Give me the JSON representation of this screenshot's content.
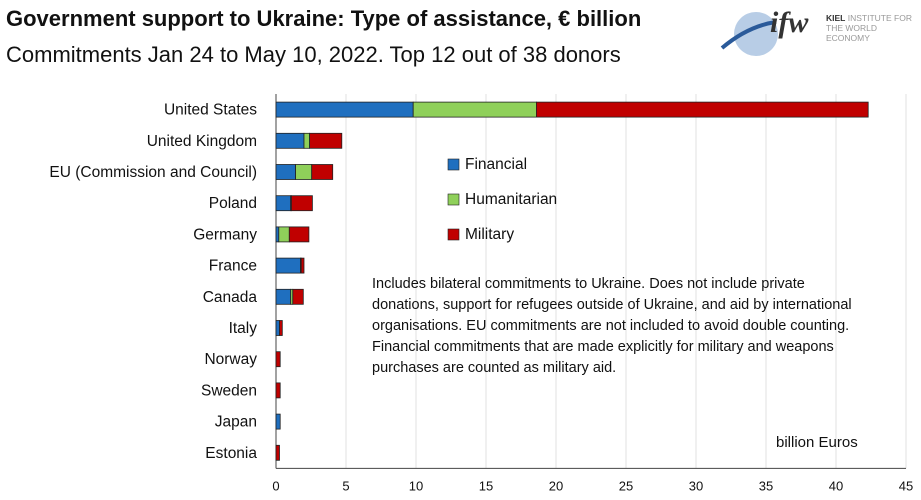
{
  "chart_data": {
    "type": "bar",
    "orientation": "horizontal",
    "stacked": true,
    "title": "Government support to Ukraine: Type of assistance, € billion",
    "subtitle": "Commitments Jan 24 to May 10, 2022. Top 12 out of 38 donors",
    "categories": [
      "United States",
      "United Kingdom",
      "EU (Commission and Council)",
      "Poland",
      "Germany",
      "France",
      "Canada",
      "Italy",
      "Norway",
      "Sweden",
      "Japan",
      "Estonia"
    ],
    "series": [
      {
        "name": "Financial",
        "color": "#1f6fbf",
        "values": [
          9.8,
          2.0,
          1.4,
          1.05,
          0.2,
          1.75,
          1.05,
          0.25,
          0,
          0,
          0.3,
          0
        ]
      },
      {
        "name": "Humanitarian",
        "color": "#8fd05a",
        "values": [
          8.8,
          0.4,
          1.15,
          0.05,
          0.75,
          0.05,
          0.15,
          0,
          0,
          0,
          0,
          0
        ]
      },
      {
        "name": "Military",
        "color": "#c00000",
        "values": [
          23.7,
          2.3,
          1.5,
          1.5,
          1.4,
          0.2,
          0.75,
          0.2,
          0.3,
          0.3,
          0,
          0.25
        ]
      }
    ],
    "xlim": [
      0,
      45
    ],
    "xticks": [
      0,
      5,
      10,
      15,
      20,
      25,
      30,
      35,
      40,
      45
    ],
    "xlabel": "billion Euros",
    "grid": true,
    "legend": "center",
    "annotation": "Includes bilateral commitments to Ukraine. Does not include private donations, support for refugees outside of Ukraine, and aid by international organisations. EU commitments are not included to avoid double counting. Financial commitments that are made explicitly for military and weapons purchases are counted as military aid."
  },
  "logo": {
    "mark": "ifw",
    "line1": "KIEL",
    "line1b": "INSTITUTE FOR",
    "line2": "THE WORLD ECONOMY"
  }
}
